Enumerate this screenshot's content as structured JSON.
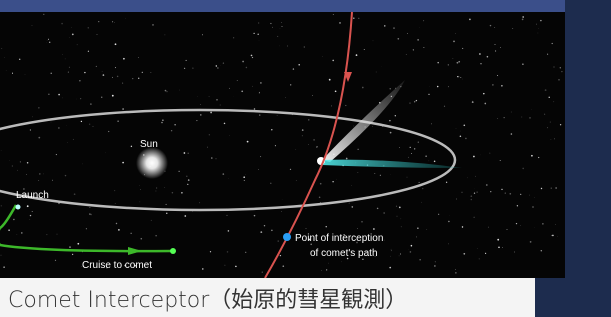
{
  "labels": {
    "sun": "Sun",
    "launch": "Launch",
    "cruise": "Cruise to comet",
    "interception_line1": "Point of interception",
    "interception_line2": "of comet's path"
  },
  "caption": "Comet Interceptor（始原的彗星観測）"
}
